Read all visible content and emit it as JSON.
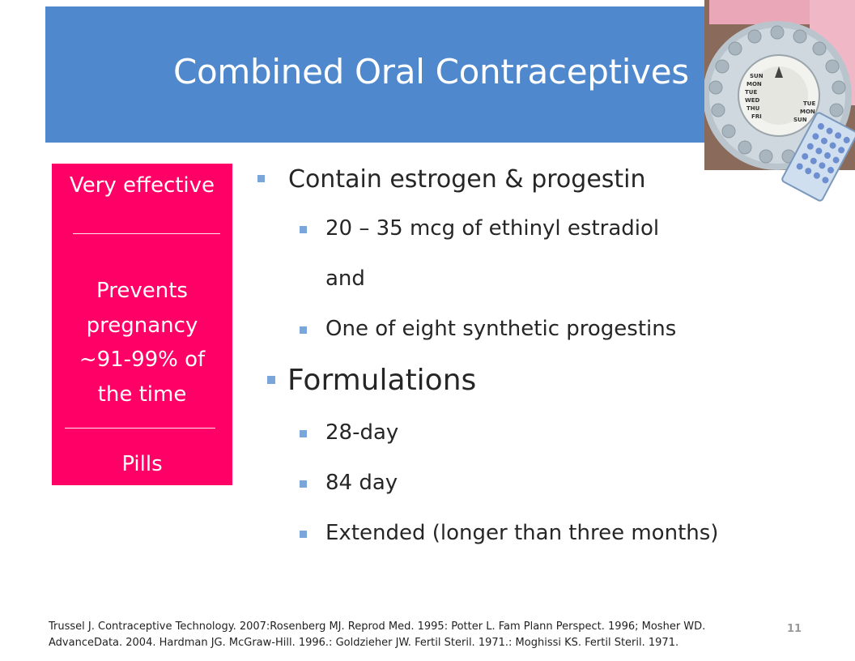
{
  "slide": {
    "title": "Combined Oral Contraceptives",
    "page_number": "11"
  },
  "sidebar": {
    "effectiveness": "Very effective",
    "prevents_lines": [
      "Prevents",
      "pregnancy",
      "~91-99% of",
      "the time"
    ],
    "method": "Pills",
    "background_color": "#ff0066"
  },
  "bullets": {
    "item1": "Contain estrogen & progestin",
    "item1_sub1": "20 – 35 mcg of ethinyl estradiol",
    "item1_connector": "and",
    "item1_sub2": "One of eight synthetic progestins",
    "item2": "Formulations",
    "item2_sub1": "28-day",
    "item2_sub2": "84 day",
    "item2_sub3": "Extended (longer than three months)"
  },
  "references": {
    "line1": "Trussel J. Contraceptive Technology. 2007:Rosenberg MJ. Reprod Med. 1995: Potter L. Fam Plann Perspect. 1996; Mosher WD.",
    "line2": "AdvanceData. 2004. Hardman JG. McGraw-Hill. 1996.: Goldzieher JW. Fertil Steril. 1971.: Moghissi KS. Fertil Steril. 1971."
  },
  "colors": {
    "header": "#4f88cc",
    "bullet": "#7aa6d9"
  },
  "icons": {
    "photo": "pill-dispenser-image"
  }
}
